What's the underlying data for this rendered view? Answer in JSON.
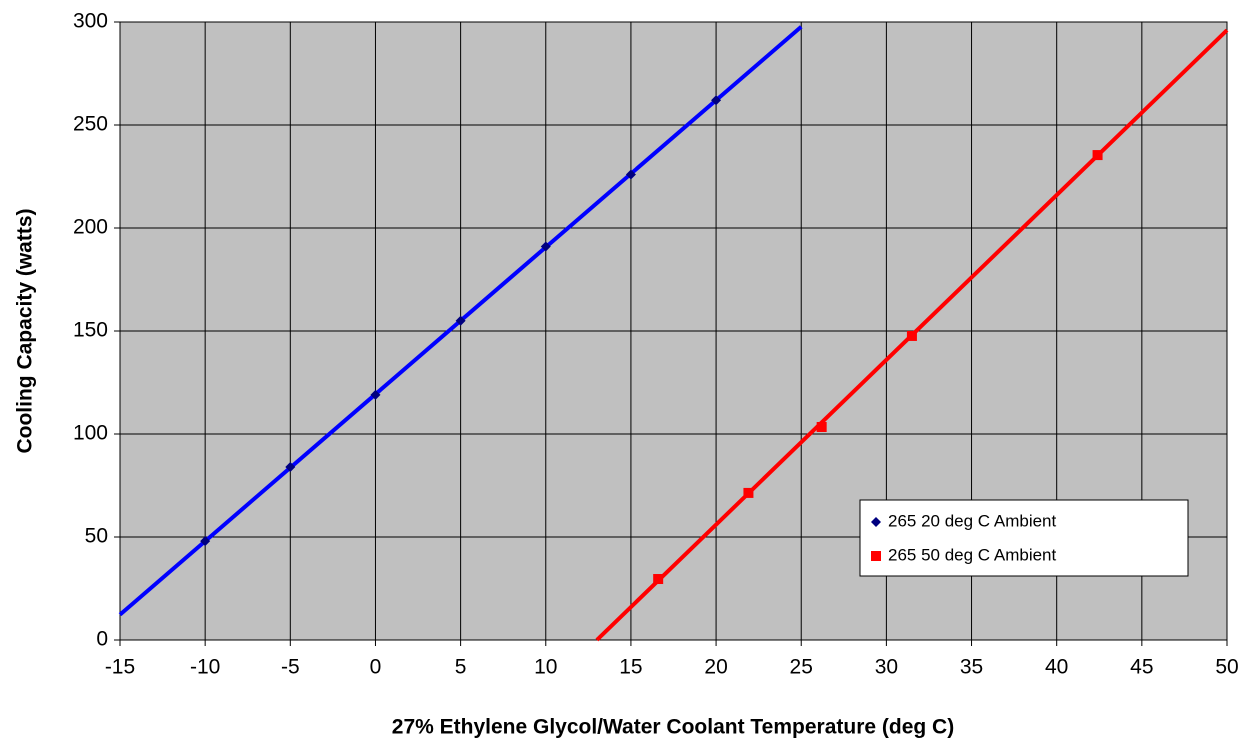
{
  "chart_data": {
    "type": "scatter",
    "xlabel": "27% Ethylene Glycol/Water Coolant Temperature (deg C)",
    "ylabel": "Cooling Capacity (watts)",
    "xlim": [
      -15,
      50
    ],
    "xticks": [
      -15,
      -10,
      -5,
      0,
      5,
      10,
      15,
      20,
      25,
      30,
      35,
      40,
      45,
      50
    ],
    "ylim": [
      0,
      300
    ],
    "yticks": [
      0,
      50,
      100,
      150,
      200,
      250,
      300
    ],
    "grid": true,
    "background": "#c0c0c0",
    "legend": "lower right",
    "series": [
      {
        "name": "265 20 deg C Ambient",
        "color": "#0000ff",
        "marker_color": "#000080",
        "marker": "diamond",
        "x": [
          -10,
          -5,
          0,
          5,
          10,
          15,
          20
        ],
        "values": [
          48,
          84,
          119,
          155,
          191,
          226,
          262
        ],
        "trendline": {
          "x": [
            -15,
            25
          ],
          "values": [
            12.3,
            297.7
          ]
        }
      },
      {
        "name": "265 50 deg C Ambient",
        "color": "#ff0000",
        "marker_color": "#ff0000",
        "marker": "square",
        "x": [
          16.6,
          21.9,
          26.2,
          31.5,
          42.4
        ],
        "values": [
          29.6,
          71.4,
          103.4,
          147.6,
          235.4
        ],
        "trendline": {
          "x": [
            13,
            50
          ],
          "values": [
            0,
            296
          ]
        }
      }
    ]
  }
}
